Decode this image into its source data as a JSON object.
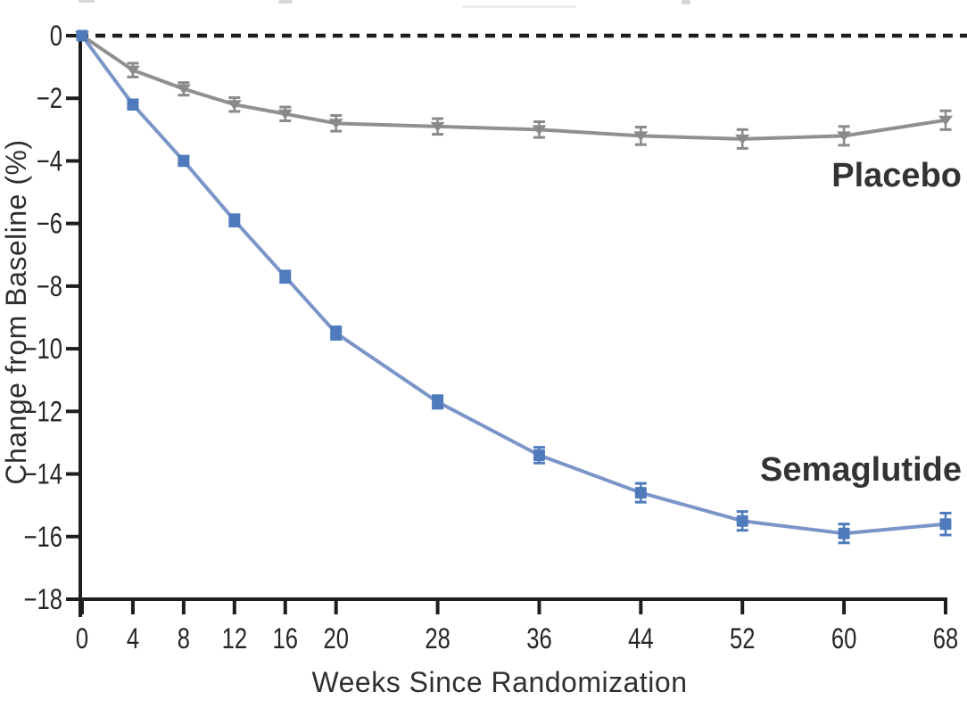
{
  "chart_data": {
    "type": "line",
    "title": "",
    "xlabel": "Weeks Since Randomization",
    "ylabel": "Change from Baseline (%)",
    "x_ticks": [
      0,
      4,
      8,
      12,
      16,
      20,
      28,
      36,
      44,
      52,
      60,
      68
    ],
    "y_ticks": [
      0,
      -2,
      -4,
      -6,
      -8,
      -10,
      -12,
      -14,
      -16,
      -18
    ],
    "xlim": [
      0,
      69.7
    ],
    "ylim": [
      -18,
      0
    ],
    "grid": false,
    "zero_reference_line": {
      "style": "dashed",
      "color": "#1d1d1d",
      "y": 0
    },
    "axis_color": "#1d1d1d",
    "legend_position": "inline-right",
    "x": [
      0,
      4,
      8,
      12,
      16,
      20,
      28,
      36,
      44,
      52,
      60,
      68
    ],
    "series": [
      {
        "name": "Semaglutide",
        "line_color": "#7b95c9",
        "marker_color": "#4f7bbd",
        "marker": "square",
        "values": [
          0,
          -2.2,
          -4.0,
          -5.9,
          -7.7,
          -9.5,
          -11.7,
          -13.4,
          -14.6,
          -15.5,
          -15.9,
          -15.6
        ],
        "errors": [
          0,
          0.15,
          0.15,
          0.18,
          0.18,
          0.2,
          0.2,
          0.25,
          0.3,
          0.3,
          0.3,
          0.35
        ]
      },
      {
        "name": "Placebo",
        "line_color": "#909090",
        "marker_color": "#8a8a8a",
        "marker": "triangle-down",
        "values": [
          0,
          -1.1,
          -1.7,
          -2.2,
          -2.5,
          -2.8,
          -2.9,
          -3.0,
          -3.2,
          -3.3,
          -3.2,
          -2.7
        ],
        "errors": [
          0,
          0.22,
          0.2,
          0.22,
          0.22,
          0.25,
          0.25,
          0.25,
          0.28,
          0.3,
          0.3,
          0.3
        ]
      }
    ]
  }
}
